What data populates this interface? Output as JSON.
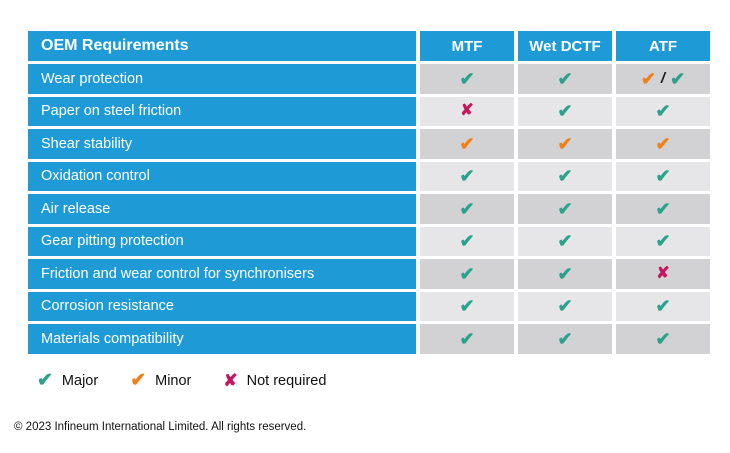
{
  "chart_data": {
    "type": "table",
    "title": "OEM Requirements",
    "columns": [
      "MTF",
      "Wet DCTF",
      "ATF"
    ],
    "rows": [
      {
        "label": "Wear protection",
        "marks": [
          [
            "major"
          ],
          [
            "major"
          ],
          [
            "minor",
            "slash",
            "major"
          ]
        ]
      },
      {
        "label": "Paper on steel friction",
        "marks": [
          [
            "notreq"
          ],
          [
            "major"
          ],
          [
            "major"
          ]
        ]
      },
      {
        "label": "Shear stability",
        "marks": [
          [
            "minor"
          ],
          [
            "minor"
          ],
          [
            "minor"
          ]
        ]
      },
      {
        "label": "Oxidation control",
        "marks": [
          [
            "major"
          ],
          [
            "major"
          ],
          [
            "major"
          ]
        ]
      },
      {
        "label": "Air release",
        "marks": [
          [
            "major"
          ],
          [
            "major"
          ],
          [
            "major"
          ]
        ]
      },
      {
        "label": "Gear pitting protection",
        "marks": [
          [
            "major"
          ],
          [
            "major"
          ],
          [
            "major"
          ]
        ]
      },
      {
        "label": "Friction and wear control for synchronisers",
        "marks": [
          [
            "major"
          ],
          [
            "major"
          ],
          [
            "notreq"
          ]
        ]
      },
      {
        "label": "Corrosion resistance",
        "marks": [
          [
            "major"
          ],
          [
            "major"
          ],
          [
            "major"
          ]
        ]
      },
      {
        "label": "Materials compatibility",
        "marks": [
          [
            "major"
          ],
          [
            "major"
          ],
          [
            "major"
          ]
        ]
      }
    ],
    "legend": [
      {
        "mark": "major",
        "label": "Major"
      },
      {
        "mark": "minor",
        "label": "Minor"
      },
      {
        "mark": "notreq",
        "label": "Not required"
      }
    ]
  },
  "glyphs": {
    "major": "✔",
    "minor": "✔",
    "notreq": "✘",
    "slash": "/"
  },
  "colors": {
    "header_blue": "#1E9BD7",
    "row_gray_dark": "#D2D2D4",
    "row_gray_light": "#E6E6E8",
    "major_green": "#2AA38A",
    "minor_orange": "#F0801A",
    "not_required_red": "#C4175C"
  },
  "footer": {
    "text": "© 2023 Infineum International Limited. All rights reserved."
  }
}
